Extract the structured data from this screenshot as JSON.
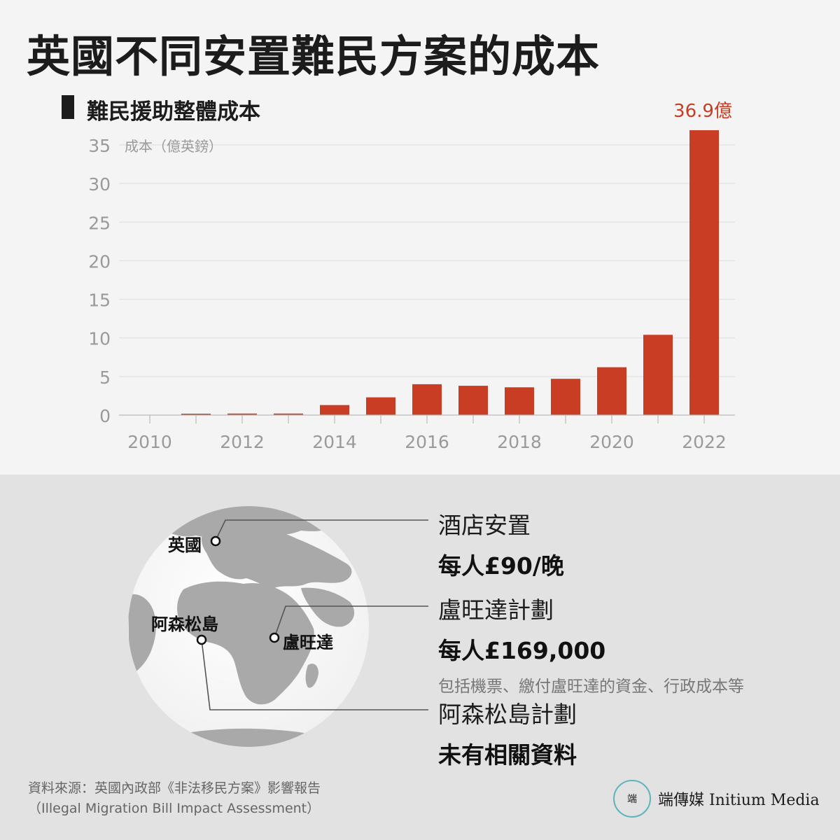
{
  "title": "英國不同安置難民方案的成本",
  "subtitle": "難民援助整體成本",
  "chart_data": {
    "type": "bar",
    "title": "難民援助整體成本",
    "ylabel": "成本（億英鎊）",
    "xlabel": "",
    "ylim": [
      0,
      35
    ],
    "yticks": [
      0,
      5,
      10,
      15,
      20,
      25,
      30,
      35
    ],
    "x_tick_labels": [
      "2010",
      "2012",
      "2014",
      "2016",
      "2018",
      "2020",
      "2022"
    ],
    "categories": [
      2010,
      2011,
      2012,
      2013,
      2014,
      2015,
      2016,
      2017,
      2018,
      2019,
      2020,
      2021,
      2022
    ],
    "values": [
      0,
      0.1,
      0.2,
      0.2,
      1.3,
      2.3,
      4.0,
      3.8,
      3.6,
      4.7,
      6.2,
      10.4,
      36.9
    ],
    "annotation": "36.9億",
    "bar_color": "#c83d24",
    "grid": true
  },
  "callouts": [
    {
      "label": "酒店安置",
      "value": "每人£90/晚",
      "note": ""
    },
    {
      "label": "盧旺達計劃",
      "value": "每人£169,000",
      "note": "包括機票、繳付盧旺達的資金、行政成本等"
    },
    {
      "label": "阿森松島計劃",
      "value": "未有相關資料",
      "note": ""
    }
  ],
  "globe_labels": {
    "uk": "英國",
    "ascension": "阿森松島",
    "rwanda": "盧旺達"
  },
  "source": {
    "line1": "資料來源：英國內政部《非法移民方案》影響報告",
    "line2": "（Illegal Migration Bill Impact Assessment）"
  },
  "brand": {
    "logo_text": "端",
    "name": "端傳媒 Initium Media",
    "accent": "#5fb4b9"
  }
}
